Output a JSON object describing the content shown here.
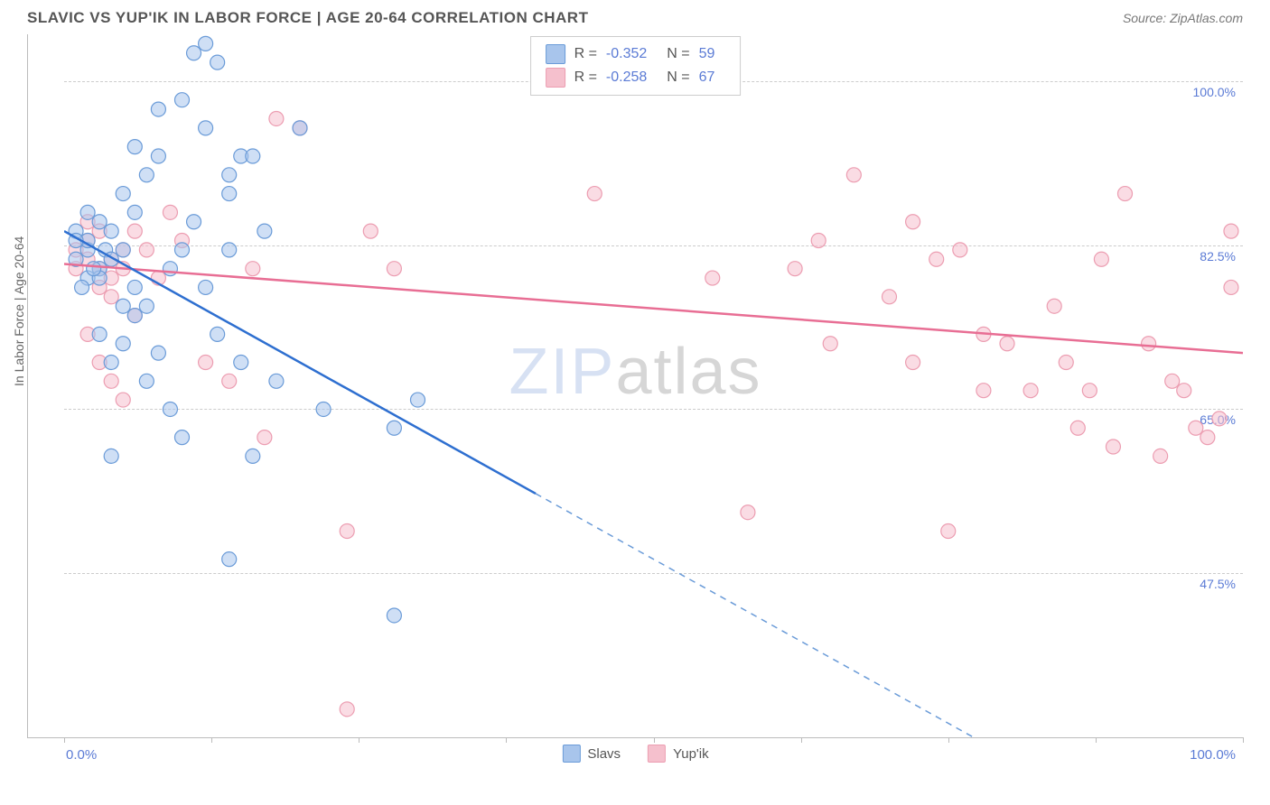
{
  "title": "SLAVIC VS YUP'IK IN LABOR FORCE | AGE 20-64 CORRELATION CHART",
  "source": "Source: ZipAtlas.com",
  "ylabel": "In Labor Force | Age 20-64",
  "watermark_part1": "ZIP",
  "watermark_part2": "atlas",
  "colors": {
    "slavs_fill": "#a8c5ec",
    "slavs_stroke": "#6a9bd8",
    "slavs_line": "#2e6fd0",
    "yupik_fill": "#f5c0cd",
    "yupik_stroke": "#ec9db1",
    "yupik_line": "#e86e94",
    "grid": "#cccccc",
    "axis": "#bbbbbb",
    "text": "#555555",
    "value_text": "#5b7bd5"
  },
  "chart": {
    "type": "scatter",
    "xlim": [
      0,
      100
    ],
    "ylim": [
      30,
      105
    ],
    "xticks": [
      0,
      12.5,
      25,
      37.5,
      50,
      62.5,
      75,
      87.5,
      100
    ],
    "yticks": [
      47.5,
      65.0,
      82.5,
      100.0
    ],
    "xtick_labels_shown": {
      "0": "0.0%",
      "100": "100.0%"
    },
    "marker_radius": 8,
    "marker_opacity": 0.55,
    "line_width": 2.5
  },
  "stats": [
    {
      "series": "slavs",
      "r_label": "R =",
      "r_value": "-0.352",
      "n_label": "N =",
      "n_value": "59"
    },
    {
      "series": "yupik",
      "r_label": "R =",
      "r_value": "-0.258",
      "n_label": "N =",
      "n_value": "67"
    }
  ],
  "legend": [
    {
      "series": "slavs",
      "label": "Slavs"
    },
    {
      "series": "yupik",
      "label": "Yup'ik"
    }
  ],
  "trend_lines": {
    "slavs": {
      "x1": 0,
      "y1": 84,
      "x2_solid": 40,
      "y2_solid": 56,
      "x2_dash": 100,
      "y2_dash": 14
    },
    "yupik": {
      "x1": 0,
      "y1": 80.5,
      "x2": 100,
      "y2": 71
    }
  },
  "series": {
    "slavs": [
      [
        2,
        82
      ],
      [
        1,
        81
      ],
      [
        2,
        83
      ],
      [
        3,
        80
      ],
      [
        1,
        84
      ],
      [
        3.5,
        82
      ],
      [
        2,
        79
      ],
      [
        4,
        81
      ],
      [
        1.5,
        78
      ],
      [
        3,
        85
      ],
      [
        2,
        86
      ],
      [
        4,
        84
      ],
      [
        5,
        82
      ],
      [
        3,
        79
      ],
      [
        1,
        83
      ],
      [
        2.5,
        80
      ],
      [
        6,
        93
      ],
      [
        7,
        90
      ],
      [
        8,
        92
      ],
      [
        5,
        88
      ],
      [
        9,
        80
      ],
      [
        10,
        82
      ],
      [
        6,
        78
      ],
      [
        7,
        76
      ],
      [
        11,
        103
      ],
      [
        12,
        104
      ],
      [
        10,
        98
      ],
      [
        13,
        102
      ],
      [
        12,
        95
      ],
      [
        14,
        90
      ],
      [
        15,
        92
      ],
      [
        8,
        97
      ],
      [
        6,
        86
      ],
      [
        5,
        72
      ],
      [
        6,
        75
      ],
      [
        4,
        70
      ],
      [
        7,
        68
      ],
      [
        8,
        71
      ],
      [
        9,
        65
      ],
      [
        10,
        62
      ],
      [
        12,
        78
      ],
      [
        14,
        82
      ],
      [
        13,
        73
      ],
      [
        11,
        85
      ],
      [
        14,
        88
      ],
      [
        16,
        92
      ],
      [
        17,
        84
      ],
      [
        15,
        70
      ],
      [
        4,
        60
      ],
      [
        3,
        73
      ],
      [
        5,
        76
      ],
      [
        16,
        60
      ],
      [
        20,
        95
      ],
      [
        18,
        68
      ],
      [
        22,
        65
      ],
      [
        28,
        63
      ],
      [
        30,
        66
      ],
      [
        14,
        49
      ],
      [
        28,
        43
      ]
    ],
    "yupik": [
      [
        2,
        81
      ],
      [
        3,
        80
      ],
      [
        1,
        82
      ],
      [
        4,
        79
      ],
      [
        2,
        83
      ],
      [
        3,
        84
      ],
      [
        1,
        80
      ],
      [
        5,
        82
      ],
      [
        2,
        85
      ],
      [
        4,
        81
      ],
      [
        3,
        78
      ],
      [
        6,
        84
      ],
      [
        5,
        80
      ],
      [
        7,
        82
      ],
      [
        4,
        77
      ],
      [
        8,
        79
      ],
      [
        6,
        75
      ],
      [
        2,
        73
      ],
      [
        3,
        70
      ],
      [
        5,
        66
      ],
      [
        4,
        68
      ],
      [
        9,
        86
      ],
      [
        10,
        83
      ],
      [
        12,
        70
      ],
      [
        14,
        68
      ],
      [
        16,
        80
      ],
      [
        18,
        96
      ],
      [
        20,
        95
      ],
      [
        24,
        52
      ],
      [
        26,
        84
      ],
      [
        24,
        33
      ],
      [
        17,
        62
      ],
      [
        28,
        80
      ],
      [
        45,
        88
      ],
      [
        50,
        102
      ],
      [
        55,
        79
      ],
      [
        58,
        54
      ],
      [
        62,
        80
      ],
      [
        64,
        83
      ],
      [
        65,
        72
      ],
      [
        67,
        90
      ],
      [
        70,
        77
      ],
      [
        72,
        70
      ],
      [
        74,
        81
      ],
      [
        76,
        82
      ],
      [
        78,
        67
      ],
      [
        80,
        72
      ],
      [
        82,
        67
      ],
      [
        84,
        76
      ],
      [
        85,
        70
      ],
      [
        86,
        63
      ],
      [
        88,
        81
      ],
      [
        90,
        88
      ],
      [
        92,
        72
      ],
      [
        94,
        68
      ],
      [
        93,
        60
      ],
      [
        95,
        67
      ],
      [
        96,
        63
      ],
      [
        97,
        62
      ],
      [
        98,
        64
      ],
      [
        99,
        84
      ],
      [
        99,
        78
      ],
      [
        75,
        52
      ],
      [
        72,
        85
      ],
      [
        78,
        73
      ],
      [
        87,
        67
      ],
      [
        89,
        61
      ]
    ]
  }
}
